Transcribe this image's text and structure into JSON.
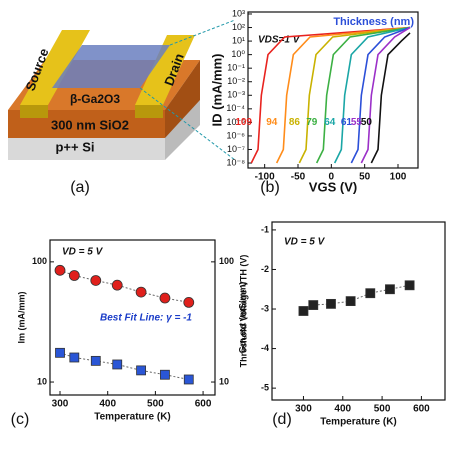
{
  "diagram": {
    "label": "(a)",
    "texts": [
      "Source",
      "Drain",
      "β-Ga2O3",
      "300 nm SiO2",
      "p++ Si"
    ]
  },
  "chart_data": [
    {
      "type": "line",
      "label": "(b)",
      "title": "Thickness (nm)",
      "annotations": [
        "VDS=1 V"
      ],
      "xlabel": "VGS (V)",
      "ylabel": "ID (mA/mm)",
      "log_y": true,
      "xlim": [
        -125,
        130
      ],
      "xticks": [
        -100,
        -50,
        0,
        50,
        100
      ],
      "ylim": [
        4.3e-09,
        1400
      ],
      "yticks": [
        {
          "value": 1e-08,
          "label": "10⁻⁸"
        },
        {
          "value": 1e-07,
          "label": "10⁻⁷"
        },
        {
          "value": 1e-06,
          "label": "10⁻⁶"
        },
        {
          "value": 1e-05,
          "label": "10⁻⁵"
        },
        {
          "value": 0.0001,
          "label": "10⁻⁴"
        },
        {
          "value": 0.001,
          "label": "10⁻³"
        },
        {
          "value": 0.01,
          "label": "10⁻²"
        },
        {
          "value": 0.1,
          "label": "10⁻¹"
        },
        {
          "value": 1,
          "label": "10⁰"
        },
        {
          "value": 10,
          "label": "10¹"
        },
        {
          "value": 100,
          "label": "10²"
        },
        {
          "value": 1000,
          "label": "10³"
        }
      ],
      "series": [
        {
          "name": "109",
          "color": "#e8231f",
          "x": [
            -120,
            -110,
            -105,
            -95,
            -70,
            118
          ],
          "values": [
            1e-08,
            1e-07,
            0.001,
            1,
            20,
            100
          ]
        },
        {
          "name": "94",
          "color": "#ff8c1a",
          "x": [
            -82,
            -72,
            -67,
            -57,
            -32,
            118
          ],
          "values": [
            1e-08,
            1e-07,
            0.001,
            1,
            20,
            100
          ]
        },
        {
          "name": "86",
          "color": "#c9b200",
          "x": [
            -48,
            -38,
            -33,
            -23,
            2,
            118
          ],
          "values": [
            1e-08,
            1e-07,
            0.001,
            1,
            20,
            100
          ]
        },
        {
          "name": "79",
          "color": "#3cb043",
          "x": [
            -22,
            -12,
            -7,
            3,
            28,
            118
          ],
          "values": [
            1e-08,
            1e-07,
            0.001,
            1,
            20,
            100
          ]
        },
        {
          "name": "64",
          "color": "#1aa6a6",
          "x": [
            5,
            15,
            20,
            30,
            55,
            118
          ],
          "values": [
            1e-08,
            1e-07,
            0.001,
            1,
            20,
            100
          ]
        },
        {
          "name": "61",
          "color": "#2c4fd8",
          "x": [
            30,
            40,
            45,
            55,
            80,
            118
          ],
          "values": [
            1e-08,
            1e-07,
            0.001,
            1,
            20,
            100
          ]
        },
        {
          "name": "55",
          "color": "#9b30c8",
          "x": [
            45,
            55,
            60,
            70,
            95,
            118
          ],
          "values": [
            1e-08,
            1e-07,
            0.001,
            1,
            20,
            100
          ]
        },
        {
          "name": "50",
          "color": "#111111",
          "x": [
            60,
            70,
            75,
            85,
            105,
            118
          ],
          "values": [
            1e-08,
            1e-07,
            0.001,
            1,
            10,
            40
          ]
        }
      ]
    },
    {
      "type": "scatter",
      "label": "(c)",
      "annotations": [
        "VD = 5 V",
        "Best Fit Line: γ = -1"
      ],
      "xlabel": "Temperature (K)",
      "ylabel": "Im (mA/mm)",
      "y2label": "Gm,ext (mS/mm)",
      "log_y": true,
      "xlim": [
        279,
        625
      ],
      "xticks": [
        300,
        400,
        500,
        600
      ],
      "ylim": [
        7.8,
        152
      ],
      "yticks": [
        10,
        100
      ],
      "y2lim": [
        7.8,
        152
      ],
      "y2ticks": [
        10,
        100
      ],
      "x": [
        300,
        330,
        375,
        420,
        470,
        520,
        570
      ],
      "series": [
        {
          "color": "#e0201c",
          "marker": "circle",
          "values": [
            85,
            77,
            70,
            64,
            56,
            50,
            46
          ]
        },
        {
          "color": "#2a56d6",
          "marker": "square",
          "axis": "y2",
          "values": [
            17.5,
            16,
            15,
            14,
            12.5,
            11.5,
            10.5
          ]
        }
      ]
    },
    {
      "type": "scatter",
      "label": "(d)",
      "annotations": [
        "VD = 5 V"
      ],
      "xlabel": "Temperature (K)",
      "ylabel": "Threshold Voltage VTH (V)",
      "xlim": [
        220,
        660
      ],
      "xticks": [
        300,
        400,
        500,
        600
      ],
      "ylim": [
        -5.3,
        -0.8
      ],
      "yticks": [
        -5,
        -4,
        -3,
        -2,
        -1
      ],
      "x": [
        300,
        325,
        370,
        420,
        470,
        520,
        570
      ],
      "series": [
        {
          "color": "#222222",
          "marker": "square",
          "values": [
            -3.05,
            -2.9,
            -2.87,
            -2.8,
            -2.6,
            -2.5,
            -2.4
          ]
        }
      ]
    }
  ]
}
